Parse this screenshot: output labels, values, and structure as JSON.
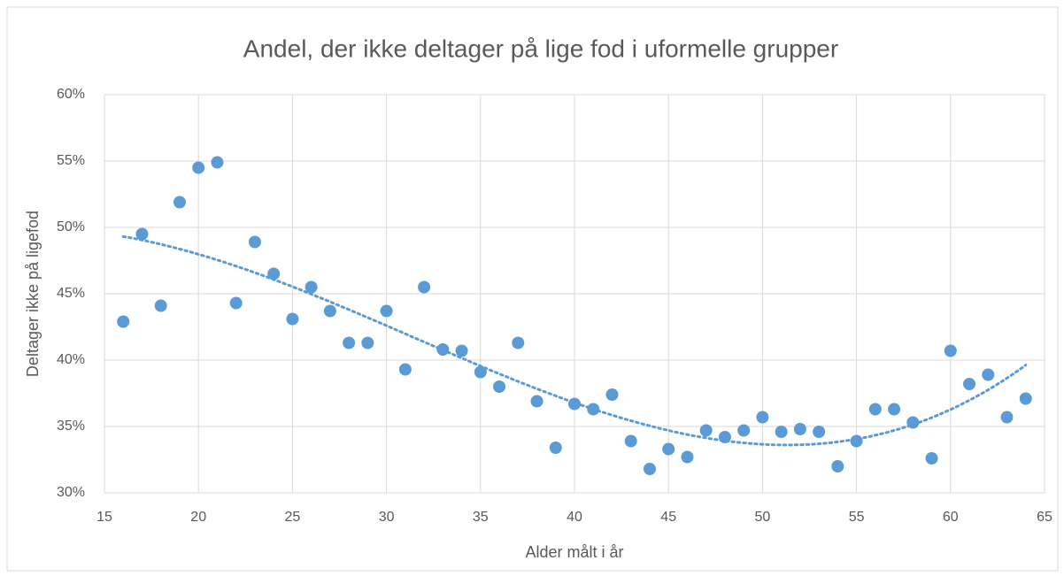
{
  "chart_data": {
    "type": "scatter",
    "title": "Andel, der ikke deltager på lige fod i uformelle grupper",
    "xlabel": "Alder målt i år",
    "ylabel": "Deltager ikke på ligefod",
    "x": [
      16,
      17,
      18,
      19,
      20,
      21,
      22,
      23,
      24,
      25,
      26,
      27,
      28,
      29,
      30,
      31,
      32,
      33,
      34,
      35,
      36,
      37,
      38,
      39,
      40,
      41,
      42,
      43,
      44,
      45,
      46,
      47,
      48,
      49,
      50,
      51,
      52,
      53,
      54,
      55,
      56,
      57,
      58,
      59,
      60,
      61,
      62,
      63,
      64
    ],
    "values": [
      42.9,
      49.5,
      44.1,
      51.9,
      54.5,
      54.9,
      44.3,
      48.9,
      46.5,
      43.1,
      45.5,
      43.7,
      41.3,
      41.3,
      43.7,
      39.3,
      45.5,
      40.8,
      40.7,
      39.1,
      38.0,
      41.3,
      36.9,
      33.4,
      36.7,
      36.3,
      37.4,
      33.9,
      31.8,
      33.3,
      32.7,
      34.7,
      34.2,
      34.7,
      35.7,
      34.6,
      34.8,
      34.6,
      32.0,
      33.9,
      36.3,
      36.3,
      35.3,
      32.6,
      40.7,
      38.2,
      38.9,
      35.7,
      37.1
    ],
    "color": "#5b9bd5",
    "trendline": {
      "type": "polynomial",
      "order": 3
    },
    "xlim": [
      15,
      65
    ],
    "xticks": [
      15,
      20,
      25,
      30,
      35,
      40,
      45,
      50,
      55,
      60,
      65
    ],
    "ylim": [
      30,
      60
    ],
    "yticks": [
      {
        "value": 30,
        "label": "30%"
      },
      {
        "value": 35,
        "label": "35%"
      },
      {
        "value": 40,
        "label": "40%"
      },
      {
        "value": 45,
        "label": "45%"
      },
      {
        "value": 50,
        "label": "50%"
      },
      {
        "value": 55,
        "label": "55%"
      },
      {
        "value": 60,
        "label": "60%"
      }
    ],
    "grid": true
  }
}
